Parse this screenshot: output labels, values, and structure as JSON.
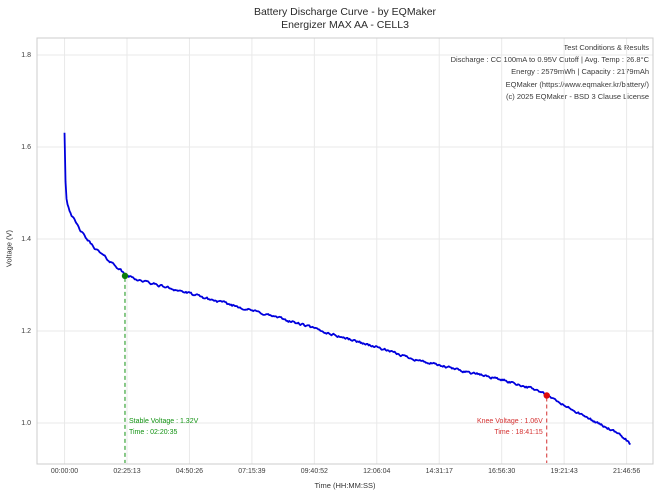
{
  "figure": {
    "title": "Battery Discharge Curve - by EQMaker",
    "subtitle": "Energizer MAX AA - CELL3"
  },
  "info_box": {
    "lines": [
      "Test Conditions & Results",
      "Discharge : CC 100mA to 0.95V Cutoff | Avg. Temp : 26.8°C",
      "Energy : 2579mWh | Capacity : 2179mAh",
      "EQMaker (https://www.eqmaker.kr/battery/)",
      "(c) 2025 EQMaker - BSD 3 Clause License"
    ]
  },
  "chart_data": {
    "type": "line",
    "title": "Battery Discharge Curve - by EQMaker",
    "subtitle": "Energizer MAX AA - CELL3",
    "xlabel": "Time (HH:MM:SS)",
    "ylabel": "Voltage (V)",
    "grid": true,
    "xlim_seconds": [
      -3840,
      82100
    ],
    "ylim": [
      0.911,
      1.837
    ],
    "x_ticks": [
      {
        "t": 0,
        "label": "00:00:00"
      },
      {
        "t": 8713,
        "label": "02:25:13"
      },
      {
        "t": 17426,
        "label": "04:50:26"
      },
      {
        "t": 26139,
        "label": "07:15:39"
      },
      {
        "t": 34852,
        "label": "09:40:52"
      },
      {
        "t": 43564,
        "label": "12:06:04"
      },
      {
        "t": 52277,
        "label": "14:31:17"
      },
      {
        "t": 60990,
        "label": "16:56:30"
      },
      {
        "t": 69703,
        "label": "19:21:43"
      },
      {
        "t": 78416,
        "label": "21:46:56"
      }
    ],
    "y_ticks": [
      {
        "v": 1.0,
        "label": "1.0"
      },
      {
        "v": 1.2,
        "label": "1.2"
      },
      {
        "v": 1.4,
        "label": "1.4"
      },
      {
        "v": 1.6,
        "label": "1.6"
      },
      {
        "v": 1.8,
        "label": "1.8"
      }
    ],
    "series": [
      {
        "name": "discharge-voltage",
        "color": "#0000dd",
        "points": [
          [
            0,
            1.631
          ],
          [
            70,
            1.628
          ],
          [
            100,
            1.575
          ],
          [
            150,
            1.512
          ],
          [
            220,
            1.492
          ],
          [
            400,
            1.478
          ],
          [
            700,
            1.464
          ],
          [
            1000,
            1.452
          ],
          [
            1500,
            1.437
          ],
          [
            2000,
            1.424
          ],
          [
            2600,
            1.41
          ],
          [
            3200,
            1.398
          ],
          [
            3900,
            1.386
          ],
          [
            4600,
            1.375
          ],
          [
            5400,
            1.364
          ],
          [
            6200,
            1.353
          ],
          [
            7000,
            1.344
          ],
          [
            7800,
            1.333
          ],
          [
            8435,
            1.322
          ],
          [
            10000,
            1.313
          ],
          [
            12000,
            1.304
          ],
          [
            14000,
            1.296
          ],
          [
            16000,
            1.288
          ],
          [
            18000,
            1.279
          ],
          [
            20000,
            1.27
          ],
          [
            22000,
            1.262
          ],
          [
            24000,
            1.254
          ],
          [
            26000,
            1.245
          ],
          [
            28000,
            1.237
          ],
          [
            30000,
            1.228
          ],
          [
            32000,
            1.219
          ],
          [
            34000,
            1.21
          ],
          [
            36000,
            1.199
          ],
          [
            38000,
            1.19
          ],
          [
            40000,
            1.181
          ],
          [
            42000,
            1.172
          ],
          [
            44000,
            1.163
          ],
          [
            46000,
            1.152
          ],
          [
            48000,
            1.143
          ],
          [
            50000,
            1.134
          ],
          [
            52000,
            1.126
          ],
          [
            54000,
            1.119
          ],
          [
            56000,
            1.112
          ],
          [
            58000,
            1.105
          ],
          [
            60000,
            1.098
          ],
          [
            62000,
            1.09
          ],
          [
            64000,
            1.081
          ],
          [
            66000,
            1.071
          ],
          [
            67275,
            1.06
          ],
          [
            68500,
            1.049
          ],
          [
            70000,
            1.036
          ],
          [
            71500,
            1.023
          ],
          [
            73000,
            1.011
          ],
          [
            74500,
            0.999
          ],
          [
            76000,
            0.987
          ],
          [
            77200,
            0.976
          ],
          [
            78300,
            0.965
          ],
          [
            79000,
            0.953
          ]
        ]
      }
    ],
    "annotations": [
      {
        "id": "stable",
        "color": "#129212",
        "marker_color": "#0a7c0a",
        "t": 8435,
        "v": 1.32,
        "align": "left",
        "label_lines": [
          "Stable Voltage : 1.32V",
          "Time : 02:20:35"
        ]
      },
      {
        "id": "knee",
        "color": "#d43030",
        "marker_color": "#dd0c0c",
        "t": 67275,
        "v": 1.06,
        "align": "right",
        "label_lines": [
          "Knee Voltage : 1.06V",
          "Time : 18:41:15"
        ]
      }
    ]
  }
}
